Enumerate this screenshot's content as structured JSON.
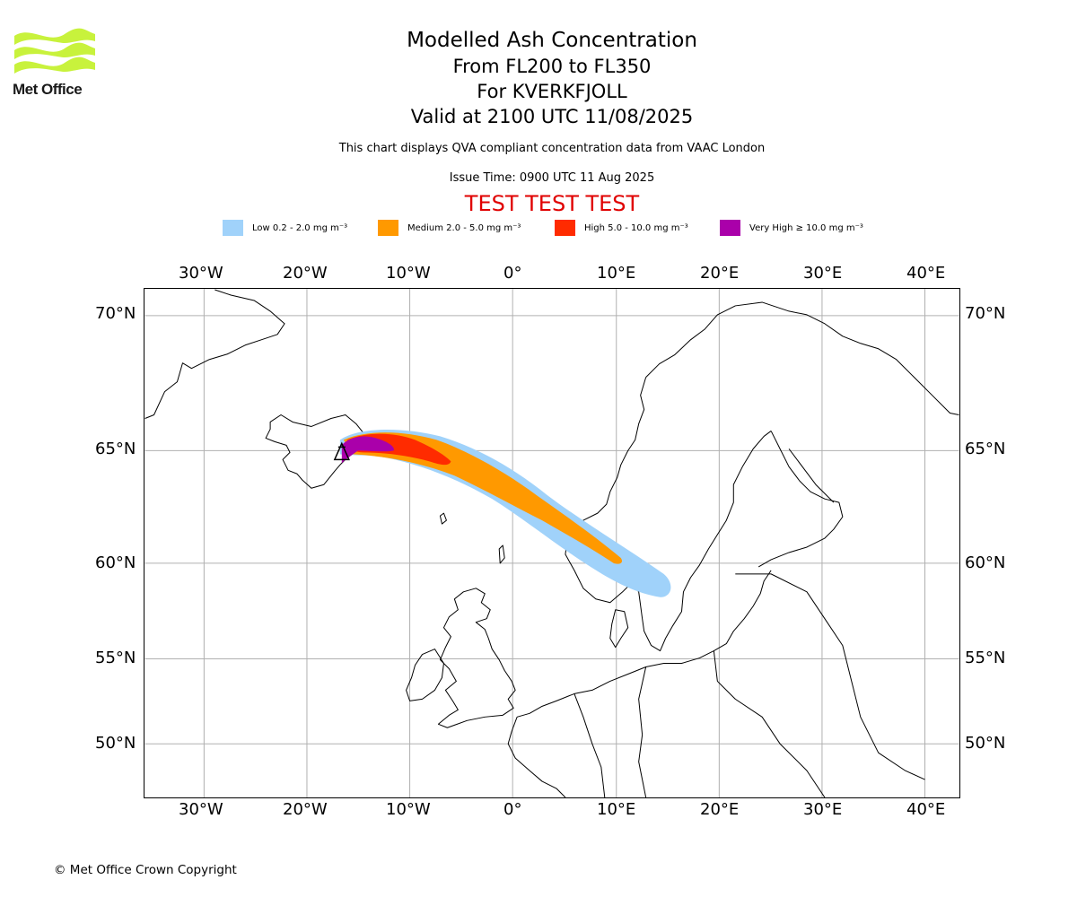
{
  "brand": {
    "logo_text": "Met Office",
    "logo_color": "#c8f23c"
  },
  "title": {
    "line1": "Modelled Ash Concentration",
    "line2": "From FL200 to FL350",
    "line3": "For KVERKFJOLL",
    "line4": "Valid at 2100 UTC 11/08/2025"
  },
  "note": "This chart displays QVA compliant concentration data from VAAC London",
  "issue_time": "Issue Time: 0900 UTC 11 Aug 2025",
  "test_banner": "TEST TEST TEST",
  "legend": [
    {
      "label": "Low 0.2 - 2.0 mg m⁻³",
      "color": "#a0d2fa"
    },
    {
      "label": "Medium 2.0 - 5.0 mg m⁻³",
      "color": "#ff9900"
    },
    {
      "label": "High 5.0 - 10.0 mg m⁻³",
      "color": "#ff2b00"
    },
    {
      "label": "Very High ≥ 10.0 mg m⁻³",
      "color": "#aa00aa"
    }
  ],
  "map": {
    "lon_ticks": [
      "30°W",
      "20°W",
      "10°W",
      "0°",
      "10°E",
      "20°E",
      "30°E",
      "40°E"
    ],
    "lat_ticks": [
      "70°N",
      "65°N",
      "60°N",
      "55°N",
      "50°N"
    ],
    "gridline_color": "#b0b0b0",
    "volcano": "KVERKFJOLL"
  },
  "footer": {
    "copyright": "© Met Office Crown Copyright"
  }
}
